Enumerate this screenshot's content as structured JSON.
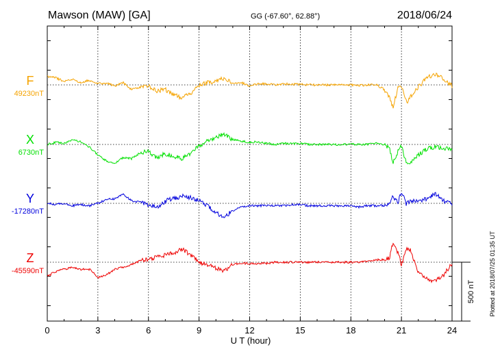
{
  "header": {
    "title": "Mawson (MAW)  [GA]",
    "coords": "GG (-67.60°,  62.88°)",
    "date": "2018/06/24"
  },
  "side_note": "Plotted at 2018/07/25 01:35 UT",
  "scale_bar_label": "500 nT",
  "colors": {
    "F": "#f5a300",
    "X": "#00e000",
    "Y": "#0000dd",
    "Z": "#ee0000"
  },
  "chart_data": {
    "type": "line",
    "xlabel": "U T (hour)",
    "xlim": [
      0,
      24
    ],
    "xticks": [
      "0",
      "3",
      "6",
      "9",
      "12",
      "15",
      "18",
      "21",
      "24"
    ],
    "grid": true,
    "scale_bar_nT": 500,
    "series": [
      {
        "name": "F",
        "baseline_label": "49230nT",
        "x": [
          0,
          0.5,
          1,
          1.5,
          2,
          2.5,
          3,
          3.5,
          4,
          4.5,
          5,
          5.5,
          6,
          6.5,
          7,
          7.5,
          8,
          8.5,
          9,
          9.5,
          10,
          10.5,
          11,
          11.5,
          12,
          12.5,
          13,
          13.5,
          14,
          14.5,
          15,
          15.5,
          16,
          16.5,
          17,
          17.5,
          18,
          18.5,
          19,
          19.5,
          20,
          20.3,
          20.5,
          20.8,
          21,
          21.3,
          21.5,
          22,
          22.5,
          23,
          23.5,
          24
        ],
        "values": [
          70,
          60,
          30,
          45,
          20,
          40,
          10,
          15,
          -10,
          20,
          -40,
          -20,
          -10,
          -50,
          -40,
          -80,
          -110,
          -70,
          0,
          20,
          30,
          60,
          10,
          20,
          -10,
          10,
          10,
          0,
          10,
          5,
          5,
          0,
          0,
          0,
          0,
          0,
          0,
          -5,
          0,
          0,
          -40,
          -110,
          -190,
          -20,
          -10,
          -150,
          -110,
          -20,
          60,
          90,
          50,
          -10
        ]
      },
      {
        "name": "X",
        "baseline_label": "6730nT",
        "x": [
          0,
          0.5,
          1,
          1.5,
          2,
          2.5,
          3,
          3.5,
          4,
          4.5,
          5,
          5.5,
          6,
          6.5,
          7,
          7.5,
          8,
          8.5,
          9,
          9.5,
          10,
          10.5,
          11,
          11.5,
          12,
          12.5,
          13,
          13.5,
          14,
          14.5,
          15,
          15.5,
          16,
          16.5,
          17,
          17.5,
          18,
          18.5,
          19,
          19.5,
          20,
          20.3,
          20.5,
          20.8,
          21,
          21.3,
          21.5,
          22,
          22.5,
          23,
          23.5,
          24
        ],
        "values": [
          0,
          20,
          10,
          40,
          20,
          -20,
          -90,
          -140,
          -160,
          -110,
          -120,
          -70,
          -60,
          -110,
          -80,
          -100,
          -120,
          -80,
          -10,
          30,
          60,
          90,
          40,
          30,
          20,
          20,
          10,
          0,
          10,
          5,
          10,
          0,
          0,
          0,
          0,
          0,
          0,
          0,
          0,
          10,
          0,
          -40,
          -160,
          -60,
          -10,
          -170,
          -150,
          -90,
          -40,
          -20,
          -30,
          -50
        ]
      },
      {
        "name": "Y",
        "baseline_label": "-17280nT",
        "x": [
          0,
          0.5,
          1,
          1.5,
          2,
          2.5,
          3,
          3.5,
          4,
          4.5,
          5,
          5.5,
          6,
          6.5,
          7,
          7.5,
          8,
          8.5,
          9,
          9.5,
          10,
          10.5,
          11,
          11.5,
          12,
          12.5,
          13,
          13.5,
          14,
          14.5,
          15,
          15.5,
          16,
          16.5,
          17,
          17.5,
          18,
          18.5,
          19,
          19.5,
          20,
          20.3,
          20.5,
          20.8,
          21,
          21.3,
          21.5,
          22,
          22.5,
          23,
          23.5,
          24
        ],
        "values": [
          0,
          -10,
          0,
          -20,
          -10,
          -20,
          0,
          30,
          40,
          80,
          20,
          10,
          -10,
          -40,
          20,
          40,
          60,
          50,
          20,
          -20,
          -80,
          -120,
          -60,
          -30,
          -20,
          -20,
          -20,
          -20,
          -20,
          -10,
          -10,
          -20,
          -20,
          -20,
          -20,
          -20,
          -20,
          -30,
          -20,
          -20,
          -20,
          -10,
          60,
          10,
          100,
          -10,
          20,
          20,
          40,
          80,
          20,
          0
        ]
      },
      {
        "name": "Z",
        "baseline_label": "-45590nT",
        "x": [
          0,
          0.5,
          1,
          1.5,
          2,
          2.5,
          3,
          3.5,
          4,
          4.5,
          5,
          5.5,
          6,
          6.5,
          7,
          7.5,
          8,
          8.5,
          9,
          9.5,
          10,
          10.5,
          11,
          11.5,
          12,
          12.5,
          13,
          13.5,
          14,
          14.5,
          15,
          15.5,
          16,
          16.5,
          17,
          17.5,
          18,
          18.5,
          19,
          19.5,
          20,
          20.3,
          20.5,
          20.8,
          21,
          21.3,
          21.5,
          22,
          22.5,
          23,
          23.5,
          24
        ],
        "values": [
          -120,
          -80,
          -60,
          -40,
          -60,
          -60,
          -130,
          -110,
          -60,
          -40,
          -20,
          10,
          30,
          40,
          60,
          80,
          110,
          60,
          0,
          -20,
          -50,
          -80,
          -20,
          -10,
          -10,
          -10,
          -10,
          0,
          0,
          0,
          0,
          0,
          0,
          0,
          0,
          0,
          0,
          0,
          10,
          20,
          20,
          40,
          170,
          80,
          -30,
          120,
          110,
          -80,
          -140,
          -160,
          -110,
          -10
        ]
      }
    ]
  }
}
